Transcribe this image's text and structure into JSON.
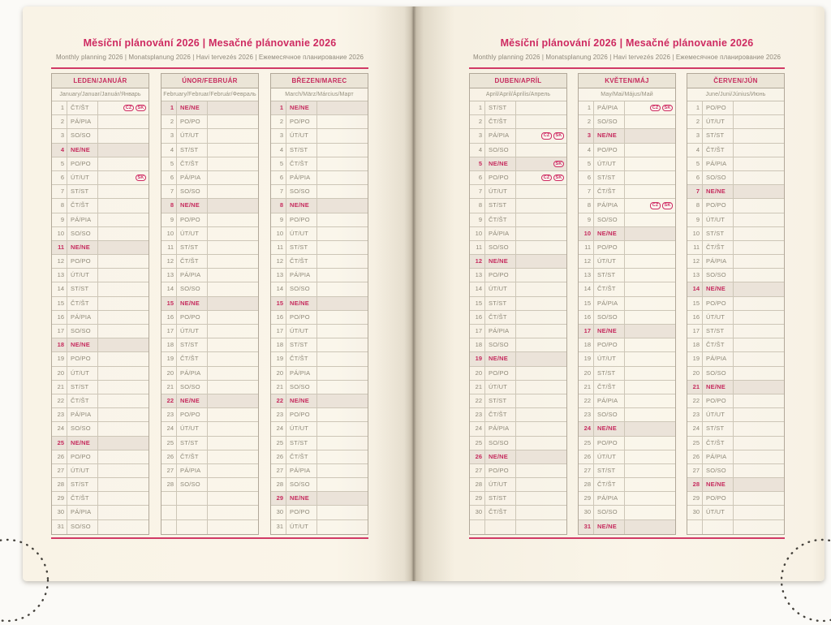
{
  "document": {
    "title": "Měsíční plánování 2026 | Mesačné plánovanie 2026",
    "subtitle": "Monthly planning 2026 | Monatsplanung 2026 | Havi tervezés 2026 | Ежемесячное планирование 2026"
  },
  "colors": {
    "accent_pink": "#ce2a61",
    "page_cream": "#faf5e9",
    "month_header_bg": "#ebe5d7",
    "sunday_row_bg": "#ebe3d9",
    "text_gray": "#8e8878",
    "table_border": "#b1a899"
  },
  "months": [
    {
      "name": "LEDEN/JANUÁR",
      "subname": "January/Januar/Január/Январь",
      "rows_total": 31,
      "day_labels": [
        "ČT/ŠT",
        "PÁ/PIA",
        "SO/SO",
        "NE/NE",
        "PO/PO",
        "ÚT/UT",
        "ST/ST",
        "ČT/ŠT",
        "PÁ/PIA",
        "SO/SO",
        "NE/NE",
        "PO/PO",
        "ÚT/UT",
        "ST/ST",
        "ČT/ŠT",
        "PÁ/PIA",
        "SO/SO",
        "NE/NE",
        "PO/PO",
        "ÚT/UT",
        "ST/ST",
        "ČT/ŠT",
        "PÁ/PIA",
        "SO/SO",
        "NE/NE",
        "PO/PO",
        "ÚT/UT",
        "ST/ST",
        "ČT/ŠT",
        "PÁ/PIA",
        "SO/SO"
      ],
      "holiday_badges": {
        "1": [
          "CZ",
          "SK"
        ],
        "6": [
          "SK"
        ]
      }
    },
    {
      "name": "ÚNOR/FEBRUÁR",
      "subname": "February/Februar/Február/Февраль",
      "rows_total": 31,
      "day_labels": [
        "NE/NE",
        "PO/PO",
        "ÚT/UT",
        "ST/ST",
        "ČT/ŠT",
        "PÁ/PIA",
        "SO/SO",
        "NE/NE",
        "PO/PO",
        "ÚT/UT",
        "ST/ST",
        "ČT/ŠT",
        "PÁ/PIA",
        "SO/SO",
        "NE/NE",
        "PO/PO",
        "ÚT/UT",
        "ST/ST",
        "ČT/ŠT",
        "PÁ/PIA",
        "SO/SO",
        "NE/NE",
        "PO/PO",
        "ÚT/UT",
        "ST/ST",
        "ČT/ŠT",
        "PÁ/PIA",
        "SO/SO"
      ],
      "holiday_badges": {}
    },
    {
      "name": "BŘEZEN/MAREC",
      "subname": "March/März/Március/Март",
      "rows_total": 31,
      "day_labels": [
        "NE/NE",
        "PO/PO",
        "ÚT/UT",
        "ST/ST",
        "ČT/ŠT",
        "PÁ/PIA",
        "SO/SO",
        "NE/NE",
        "PO/PO",
        "ÚT/UT",
        "ST/ST",
        "ČT/ŠT",
        "PÁ/PIA",
        "SO/SO",
        "NE/NE",
        "PO/PO",
        "ÚT/UT",
        "ST/ST",
        "ČT/ŠT",
        "PÁ/PIA",
        "SO/SO",
        "NE/NE",
        "PO/PO",
        "ÚT/UT",
        "ST/ST",
        "ČT/ŠT",
        "PÁ/PIA",
        "SO/SO",
        "NE/NE",
        "PO/PO",
        "ÚT/UT"
      ],
      "holiday_badges": {}
    },
    {
      "name": "DUBEN/APRÍL",
      "subname": "April/April/Április/Апрель",
      "rows_total": 31,
      "day_labels": [
        "ST/ST",
        "ČT/ŠT",
        "PÁ/PIA",
        "SO/SO",
        "NE/NE",
        "PO/PO",
        "ÚT/UT",
        "ST/ST",
        "ČT/ŠT",
        "PÁ/PIA",
        "SO/SO",
        "NE/NE",
        "PO/PO",
        "ÚT/UT",
        "ST/ST",
        "ČT/ŠT",
        "PÁ/PIA",
        "SO/SO",
        "NE/NE",
        "PO/PO",
        "ÚT/UT",
        "ST/ST",
        "ČT/ŠT",
        "PÁ/PIA",
        "SO/SO",
        "NE/NE",
        "PO/PO",
        "ÚT/UT",
        "ST/ST",
        "ČT/ŠT"
      ],
      "holiday_badges": {
        "3": [
          "CZ",
          "SK"
        ],
        "5": [
          "SK"
        ],
        "6": [
          "CZ",
          "SK"
        ]
      }
    },
    {
      "name": "KVĚTEN/MÁJ",
      "subname": "May/Mai/Május/Май",
      "rows_total": 31,
      "day_labels": [
        "PÁ/PIA",
        "SO/SO",
        "NE/NE",
        "PO/PO",
        "ÚT/UT",
        "ST/ST",
        "ČT/ŠT",
        "PÁ/PIA",
        "SO/SO",
        "NE/NE",
        "PO/PO",
        "ÚT/UT",
        "ST/ST",
        "ČT/ŠT",
        "PÁ/PIA",
        "SO/SO",
        "NE/NE",
        "PO/PO",
        "ÚT/UT",
        "ST/ST",
        "ČT/ŠT",
        "PÁ/PIA",
        "SO/SO",
        "NE/NE",
        "PO/PO",
        "ÚT/UT",
        "ST/ST",
        "ČT/ŠT",
        "PÁ/PIA",
        "SO/SO",
        "NE/NE"
      ],
      "holiday_badges": {
        "1": [
          "CZ",
          "SK"
        ],
        "8": [
          "CZ",
          "SK"
        ]
      }
    },
    {
      "name": "ČERVEN/JÚN",
      "subname": "June/Juni/Június/Июнь",
      "rows_total": 31,
      "day_labels": [
        "PO/PO",
        "ÚT/UT",
        "ST/ST",
        "ČT/ŠT",
        "PÁ/PIA",
        "SO/SO",
        "NE/NE",
        "PO/PO",
        "ÚT/UT",
        "ST/ST",
        "ČT/ŠT",
        "PÁ/PIA",
        "SO/SO",
        "NE/NE",
        "PO/PO",
        "ÚT/UT",
        "ST/ST",
        "ČT/ŠT",
        "PÁ/PIA",
        "SO/SO",
        "NE/NE",
        "PO/PO",
        "ÚT/UT",
        "ST/ST",
        "ČT/ŠT",
        "PÁ/PIA",
        "SO/SO",
        "NE/NE",
        "PO/PO",
        "ÚT/UT"
      ],
      "holiday_badges": {}
    }
  ]
}
